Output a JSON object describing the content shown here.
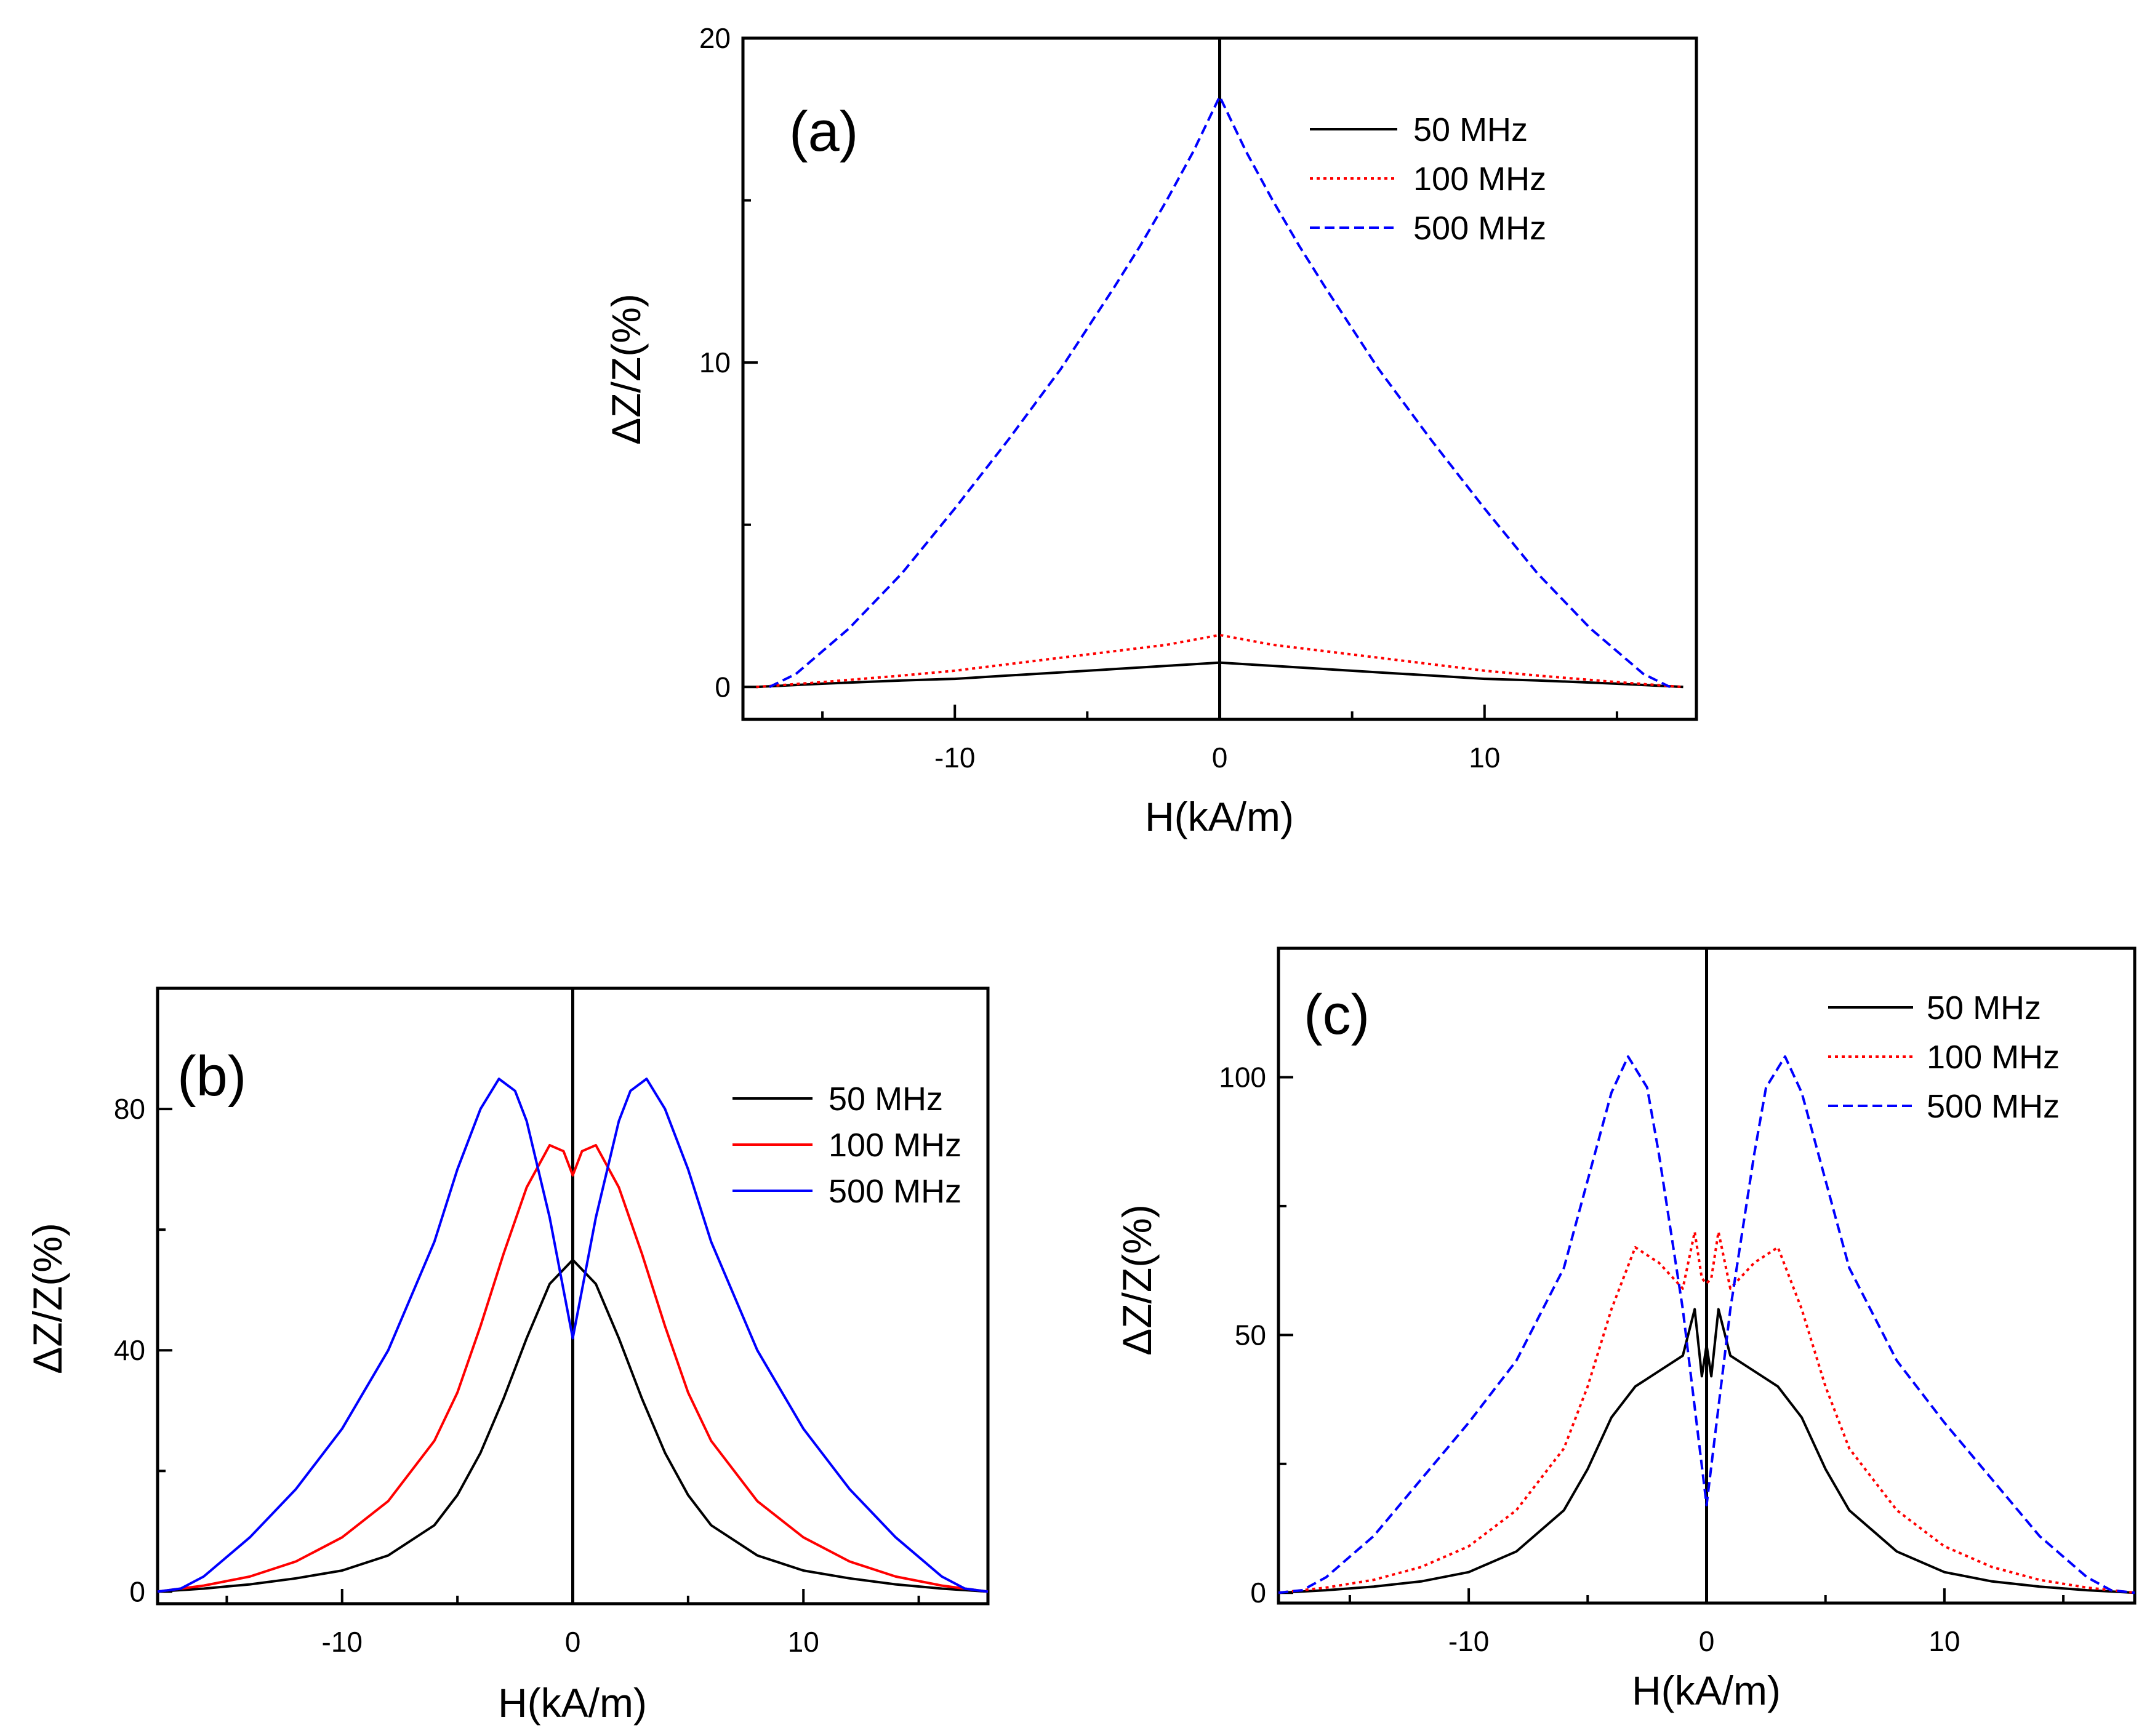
{
  "chart_data": [
    {
      "id": "a",
      "type": "line",
      "panel_label": "(a)",
      "xlabel": "H(kA/m)",
      "ylabel": "ΔZ/Z(%)",
      "xlim": [
        -18,
        18
      ],
      "ylim": [
        -1,
        20
      ],
      "xticks": [
        -10,
        0,
        10
      ],
      "xtick_labels": [
        "-10",
        "0",
        "10"
      ],
      "yticks": [
        0,
        10,
        20
      ],
      "ytick_labels": [
        "0",
        "10",
        "20"
      ],
      "zero_line": true,
      "legend_position": "top-right",
      "series": [
        {
          "name": "50 MHz",
          "color": "#000000",
          "style": "solid",
          "x": [
            -17.5,
            -15,
            -12,
            -10,
            -8,
            -6,
            -4,
            -2,
            -1,
            0,
            1,
            2,
            4,
            6,
            8,
            10,
            12,
            15,
            17.5
          ],
          "y": [
            0,
            0.1,
            0.2,
            0.25,
            0.35,
            0.45,
            0.55,
            0.65,
            0.7,
            0.75,
            0.7,
            0.65,
            0.55,
            0.45,
            0.35,
            0.25,
            0.2,
            0.1,
            0
          ]
        },
        {
          "name": "100 MHz",
          "color": "#ff0000",
          "style": "dotted",
          "x": [
            -17.5,
            -15,
            -12,
            -10,
            -8,
            -6,
            -4,
            -2,
            -1,
            0,
            1,
            2,
            4,
            6,
            8,
            10,
            12,
            15,
            17.5
          ],
          "y": [
            0,
            0.15,
            0.35,
            0.5,
            0.7,
            0.9,
            1.1,
            1.3,
            1.45,
            1.6,
            1.45,
            1.3,
            1.1,
            0.9,
            0.7,
            0.5,
            0.35,
            0.15,
            0
          ]
        },
        {
          "name": "500 MHz",
          "color": "#0000ff",
          "style": "dashed",
          "x": [
            -17,
            -16,
            -14,
            -12,
            -10,
            -8,
            -6,
            -4,
            -3,
            -2,
            -1,
            0,
            1,
            2,
            3,
            4,
            6,
            8,
            10,
            12,
            14,
            16,
            17
          ],
          "y": [
            0,
            0.4,
            1.8,
            3.5,
            5.5,
            7.6,
            9.8,
            12.3,
            13.6,
            15.0,
            16.5,
            18.2,
            16.5,
            15.0,
            13.6,
            12.3,
            9.8,
            7.6,
            5.5,
            3.5,
            1.8,
            0.4,
            0
          ]
        }
      ]
    },
    {
      "id": "b",
      "type": "line",
      "panel_label": "(b)",
      "xlabel": "H(kA/m)",
      "ylabel": "ΔZ/Z(%)",
      "xlim": [
        -18,
        18
      ],
      "ylim": [
        -2,
        100
      ],
      "xticks": [
        -10,
        0,
        10
      ],
      "xtick_labels": [
        "-10",
        "0",
        "10"
      ],
      "yticks": [
        0,
        40,
        80
      ],
      "ytick_labels": [
        "0",
        "40",
        "80"
      ],
      "zero_line": true,
      "legend_position": "center-right",
      "series": [
        {
          "name": "50 MHz",
          "color": "#000000",
          "style": "solid",
          "x": [
            -18,
            -16,
            -14,
            -12,
            -10,
            -8,
            -6,
            -5,
            -4,
            -3,
            -2,
            -1,
            0,
            1,
            2,
            3,
            4,
            5,
            6,
            8,
            10,
            12,
            14,
            16,
            18
          ],
          "y": [
            0,
            0.5,
            1.2,
            2.2,
            3.5,
            6,
            11,
            16,
            23,
            32,
            42,
            51,
            55,
            51,
            42,
            32,
            23,
            16,
            11,
            6,
            3.5,
            2.2,
            1.2,
            0.5,
            0
          ]
        },
        {
          "name": "100 MHz",
          "color": "#ff0000",
          "style": "solid",
          "x": [
            -18,
            -16,
            -14,
            -12,
            -10,
            -8,
            -6,
            -5,
            -4,
            -3,
            -2,
            -1,
            -0.4,
            0,
            0.4,
            1,
            2,
            3,
            4,
            5,
            6,
            8,
            10,
            12,
            14,
            16,
            18
          ],
          "y": [
            0,
            1,
            2.5,
            5,
            9,
            15,
            25,
            33,
            44,
            56,
            67,
            74,
            73,
            69,
            73,
            74,
            67,
            56,
            44,
            33,
            25,
            15,
            9,
            5,
            2.5,
            1,
            0
          ]
        },
        {
          "name": "500 MHz",
          "color": "#0000ff",
          "style": "solid",
          "x": [
            -18,
            -17,
            -16,
            -14,
            -12,
            -10,
            -8,
            -6,
            -5,
            -4,
            -3.2,
            -2.5,
            -2,
            -1,
            0,
            1,
            2,
            2.5,
            3.2,
            4,
            5,
            6,
            8,
            10,
            12,
            14,
            16,
            17,
            18
          ],
          "y": [
            0,
            0.5,
            2.5,
            9,
            17,
            27,
            40,
            58,
            70,
            80,
            85,
            83,
            78,
            62,
            42,
            62,
            78,
            83,
            85,
            80,
            70,
            58,
            40,
            27,
            17,
            9,
            2.5,
            0.5,
            0
          ]
        }
      ]
    },
    {
      "id": "c",
      "type": "line",
      "panel_label": "(c)",
      "xlabel": "H(kA/m)",
      "ylabel": "ΔZ/Z(%)",
      "xlim": [
        -18,
        18
      ],
      "ylim": [
        -2,
        125
      ],
      "xticks": [
        -10,
        0,
        10
      ],
      "xtick_labels": [
        "-10",
        "0",
        "10"
      ],
      "yticks": [
        0,
        50,
        100
      ],
      "ytick_labels": [
        "0",
        "50",
        "100"
      ],
      "zero_line": true,
      "legend_position": "top-right",
      "series": [
        {
          "name": "50 MHz",
          "color": "#000000",
          "style": "solid",
          "x": [
            -18,
            -16,
            -14,
            -12,
            -10,
            -8,
            -6,
            -5,
            -4,
            -3,
            -2,
            -1,
            -0.5,
            -0.2,
            0,
            0.2,
            0.5,
            1,
            2,
            3,
            4,
            5,
            6,
            8,
            10,
            12,
            14,
            16,
            18
          ],
          "y": [
            0,
            0.5,
            1.2,
            2.2,
            4,
            8,
            16,
            24,
            34,
            40,
            43,
            46,
            55,
            42,
            48,
            42,
            55,
            46,
            43,
            40,
            34,
            24,
            16,
            8,
            4,
            2.2,
            1.2,
            0.5,
            0
          ]
        },
        {
          "name": "100 MHz",
          "color": "#ff0000",
          "style": "dotted",
          "x": [
            -18,
            -16,
            -14,
            -12,
            -10,
            -8,
            -6,
            -5,
            -4,
            -3,
            -2,
            -1,
            -0.5,
            -0.2,
            0,
            0.2,
            0.5,
            1,
            2,
            3,
            4,
            5,
            6,
            8,
            10,
            12,
            14,
            16,
            18
          ],
          "y": [
            0,
            1,
            2.5,
            5,
            9,
            16,
            28,
            40,
            55,
            67,
            64,
            59,
            70,
            61,
            60,
            61,
            70,
            59,
            64,
            67,
            55,
            40,
            28,
            16,
            9,
            5,
            2.5,
            1,
            0
          ]
        },
        {
          "name": "500 MHz",
          "color": "#0000ff",
          "style": "dashed",
          "x": [
            -18,
            -17,
            -16,
            -14,
            -12,
            -10,
            -8,
            -6,
            -5,
            -4,
            -3.3,
            -2.5,
            -2,
            -1,
            0,
            1,
            2,
            2.5,
            3.3,
            4,
            5,
            6,
            8,
            10,
            12,
            14,
            16,
            17,
            18
          ],
          "y": [
            0,
            0.5,
            3,
            11,
            22,
            33,
            45,
            63,
            80,
            97,
            104,
            98,
            85,
            55,
            17,
            55,
            85,
            98,
            104,
            97,
            80,
            63,
            45,
            33,
            22,
            11,
            3,
            0.5,
            0
          ]
        }
      ]
    }
  ]
}
